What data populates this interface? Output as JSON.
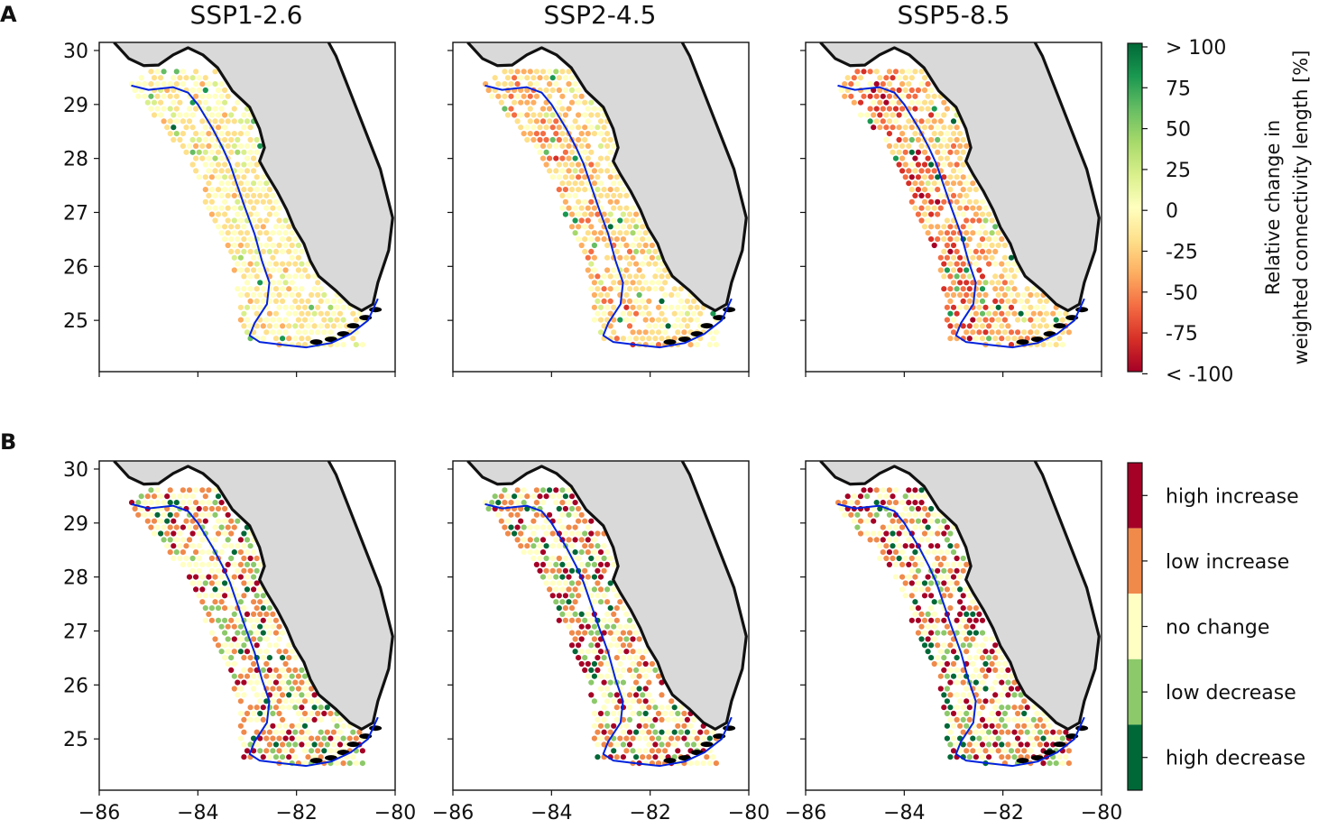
{
  "figure": {
    "panel_letters": [
      "A",
      "B"
    ],
    "column_titles": [
      "SSP1-2.6",
      "SSP2-4.5",
      "SSP5-8.5"
    ],
    "colorbar_top": {
      "label_line1": "Relative change in",
      "label_line2": "weighted connectivity length [%]",
      "tick_labels": [
        "> 100",
        "75",
        "50",
        "25",
        "0",
        "-25",
        "-50",
        "-75",
        "< -100"
      ],
      "colors": [
        "#006837",
        "#1a9850",
        "#66bd63",
        "#a6d96a",
        "#d9ef8b",
        "#ffffbf",
        "#fee08b",
        "#fdae61",
        "#f46d43",
        "#d73027",
        "#a50026"
      ]
    },
    "colorbar_bottom": {
      "categories": [
        "high increase",
        "low increase",
        "no change",
        "low decrease",
        "high decrease"
      ],
      "colors": [
        "#a50026",
        "#f08a4b",
        "#ffffc4",
        "#8cc96a",
        "#006837"
      ]
    },
    "colors": {
      "land": "#d9d9d9",
      "coastline": "#111111",
      "blue_contour": "#0022dd"
    }
  },
  "chart_data": [
    {
      "type": "heatmap",
      "panel": "A",
      "title": "SSP1-2.6",
      "x_ticks": [
        -86,
        -84,
        -82,
        -80
      ],
      "y_ticks": [
        25,
        26,
        27,
        28,
        29,
        30
      ],
      "xlim": [
        -86,
        -80
      ],
      "ylim": [
        24.05,
        30.15
      ],
      "value_summary": "mostly near 0 to -25% change; a few stronger decreases near the shelf and coast",
      "bias": 0.5
    },
    {
      "type": "heatmap",
      "panel": "A",
      "title": "SSP2-4.5",
      "x_ticks": [
        -86,
        -84,
        -82,
        -80
      ],
      "y_ticks": [
        25,
        26,
        27,
        28,
        29,
        30
      ],
      "xlim": [
        -86,
        -80
      ],
      "ylim": [
        24.05,
        30.15
      ],
      "value_summary": "widespread -25% to -50% change",
      "bias": 1.3
    },
    {
      "type": "heatmap",
      "panel": "A",
      "title": "SSP5-8.5",
      "x_ticks": [
        -86,
        -84,
        -82,
        -80
      ],
      "y_ticks": [
        25,
        26,
        27,
        28,
        29,
        30
      ],
      "xlim": [
        -86,
        -80
      ],
      "ylim": [
        24.05,
        30.15
      ],
      "value_summary": "strong decreases (-50% to < -100%) along the outer shelf",
      "bias": 2.2
    },
    {
      "type": "heatmap",
      "panel": "B",
      "title": "SSP1-2.6",
      "x_ticks": [
        -86,
        -84,
        -82,
        -80
      ],
      "y_ticks": [
        25,
        26,
        27,
        28,
        29,
        30
      ],
      "xlim": [
        -86,
        -80
      ],
      "ylim": [
        24.05,
        30.15
      ],
      "categories": [
        "high increase",
        "low increase",
        "no change",
        "low decrease",
        "high decrease"
      ],
      "mix": [
        0.12,
        0.28,
        0.42,
        0.12,
        0.06
      ]
    },
    {
      "type": "heatmap",
      "panel": "B",
      "title": "SSP2-4.5",
      "x_ticks": [
        -86,
        -84,
        -82,
        -80
      ],
      "y_ticks": [
        25,
        26,
        27,
        28,
        29,
        30
      ],
      "xlim": [
        -86,
        -80
      ],
      "ylim": [
        24.05,
        30.15
      ],
      "categories": [
        "high increase",
        "low increase",
        "no change",
        "low decrease",
        "high decrease"
      ],
      "mix": [
        0.14,
        0.27,
        0.38,
        0.13,
        0.08
      ]
    },
    {
      "type": "heatmap",
      "panel": "B",
      "title": "SSP5-8.5",
      "x_ticks": [
        -86,
        -84,
        -82,
        -80
      ],
      "y_ticks": [
        25,
        26,
        27,
        28,
        29,
        30
      ],
      "xlim": [
        -86,
        -80
      ],
      "ylim": [
        24.05,
        30.15
      ],
      "categories": [
        "high increase",
        "low increase",
        "no change",
        "low decrease",
        "high decrease"
      ],
      "mix": [
        0.18,
        0.26,
        0.34,
        0.13,
        0.09
      ]
    }
  ]
}
